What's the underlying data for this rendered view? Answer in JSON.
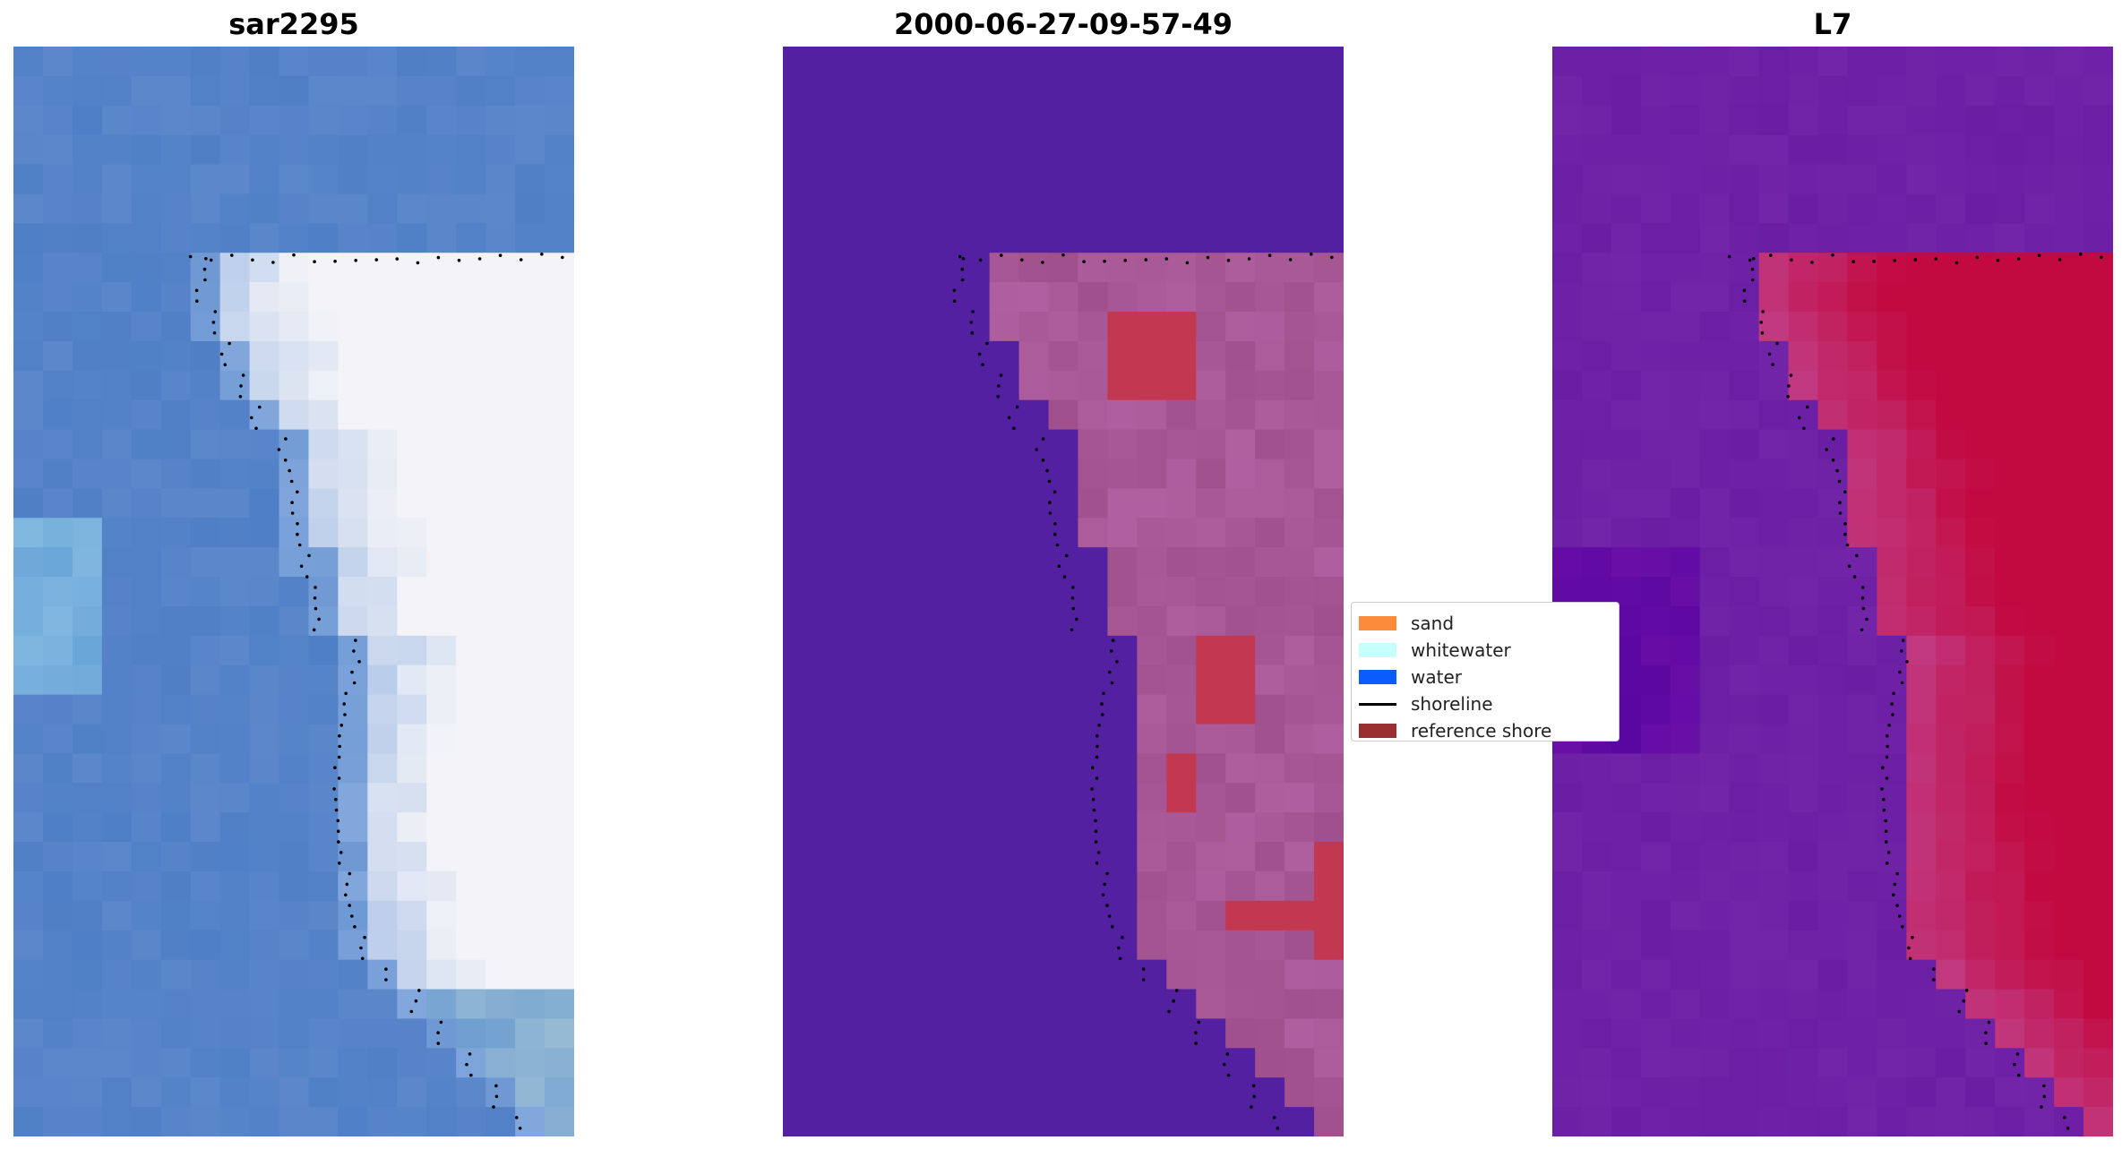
{
  "titles": [
    "sar2295",
    "2000-06-27-09-57-49",
    "L7"
  ],
  "legend": [
    {
      "label": "sand",
      "color": "#fb8c3c",
      "kind": "patch"
    },
    {
      "label": "whitewater",
      "color": "#c8fffc",
      "kind": "patch"
    },
    {
      "label": "water",
      "color": "#0a5cff",
      "kind": "patch"
    },
    {
      "label": "shoreline",
      "color": "#000000",
      "kind": "line"
    },
    {
      "label": "reference shore",
      "color": "#9b2e2e",
      "kind": "patch"
    }
  ],
  "colors": {
    "rgb_water": "#4f7fc6",
    "rgb_foam": "#f4f4f8",
    "class_water": "#5220a0",
    "class_land": "#b060a0",
    "class_highlight": "#c23850",
    "index_low": "#6a1ea4",
    "index_high": "#c20a40",
    "shoreline_dots": "#000000"
  }
}
